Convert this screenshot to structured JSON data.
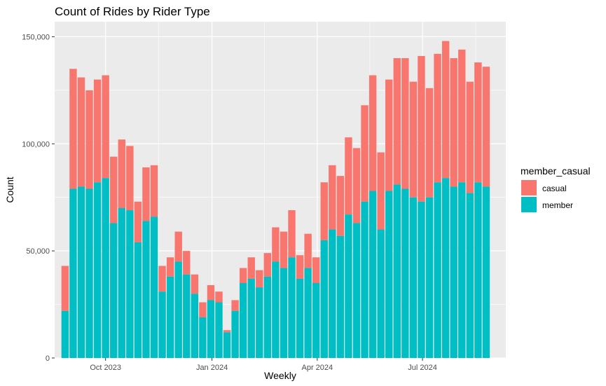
{
  "chart_data": {
    "type": "bar",
    "stacked": true,
    "title": "Count of Rides by Rider Type",
    "xlabel": "Weekly",
    "ylabel": "Count",
    "ylim": [
      0,
      157000
    ],
    "y_ticks": [
      0,
      50000,
      100000,
      150000
    ],
    "y_tick_labels": [
      "0",
      "50,000",
      "100,000",
      "150,000"
    ],
    "x_ticks": [
      "2023-10-01",
      "2024-01-01",
      "2024-04-01",
      "2024-07-01"
    ],
    "x_tick_labels": [
      "Oct 2023",
      "Jan 2024",
      "Apr 2024",
      "Jul 2024"
    ],
    "x_range": [
      "2023-08-18",
      "2024-09-11"
    ],
    "legend": {
      "title": "member_casual",
      "position": "right"
    },
    "grid": true,
    "series": [
      {
        "name": "casual",
        "color": "#F8766D"
      },
      {
        "name": "member",
        "color": "#00BFC4"
      }
    ],
    "weeks": [
      "2023-08-27",
      "2023-09-03",
      "2023-09-10",
      "2023-09-17",
      "2023-09-24",
      "2023-10-01",
      "2023-10-08",
      "2023-10-15",
      "2023-10-22",
      "2023-10-29",
      "2023-11-05",
      "2023-11-12",
      "2023-11-19",
      "2023-11-26",
      "2023-12-03",
      "2023-12-10",
      "2023-12-17",
      "2023-12-24",
      "2023-12-31",
      "2024-01-07",
      "2024-01-14",
      "2024-01-21",
      "2024-01-28",
      "2024-02-04",
      "2024-02-11",
      "2024-02-18",
      "2024-02-25",
      "2024-03-03",
      "2024-03-10",
      "2024-03-17",
      "2024-03-24",
      "2024-03-31",
      "2024-04-07",
      "2024-04-14",
      "2024-04-21",
      "2024-04-28",
      "2024-05-05",
      "2024-05-12",
      "2024-05-19",
      "2024-05-26",
      "2024-06-02",
      "2024-06-09",
      "2024-06-16",
      "2024-06-23",
      "2024-06-30",
      "2024-07-07",
      "2024-07-14",
      "2024-07-21",
      "2024-07-28",
      "2024-08-04",
      "2024-08-11",
      "2024-08-18",
      "2024-08-25"
    ],
    "member": [
      22000,
      79000,
      80000,
      79000,
      82000,
      84000,
      63000,
      70000,
      69000,
      54000,
      64000,
      66000,
      31000,
      38000,
      45000,
      39000,
      30000,
      19000,
      27000,
      26000,
      12000,
      22000,
      35000,
      37000,
      33000,
      38000,
      45000,
      42000,
      47000,
      37000,
      42000,
      35000,
      55000,
      60000,
      57000,
      67000,
      63000,
      73000,
      78000,
      60000,
      78000,
      81000,
      79000,
      75000,
      73000,
      75000,
      82000,
      84000,
      80000,
      82000,
      77000,
      82000,
      80000
    ],
    "total": [
      43000,
      135000,
      131000,
      125000,
      130000,
      132000,
      94000,
      102000,
      99000,
      73000,
      89000,
      90000,
      43000,
      47000,
      59000,
      50000,
      39000,
      26000,
      34000,
      31000,
      13000,
      27000,
      42000,
      47000,
      41000,
      49000,
      61000,
      59000,
      69000,
      48000,
      58000,
      47000,
      82000,
      90000,
      85000,
      103000,
      98000,
      118000,
      132000,
      96000,
      130000,
      140000,
      140000,
      129000,
      141000,
      126000,
      142000,
      148000,
      140000,
      144000,
      129000,
      138000,
      136000
    ]
  }
}
